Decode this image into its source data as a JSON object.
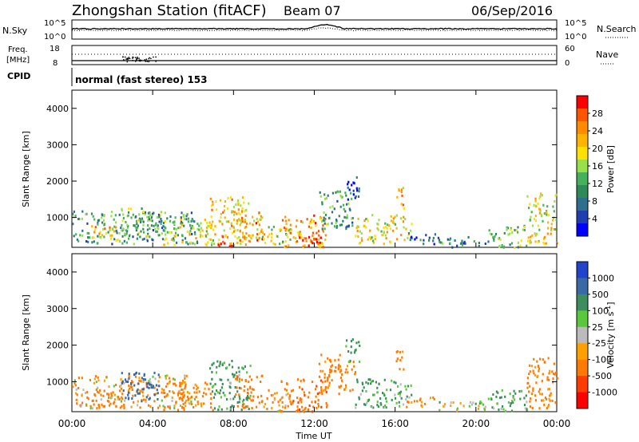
{
  "header": {
    "station": "Zhongshan Station (fitACF)",
    "beam": "Beam 07",
    "date": "06/Sep/2016"
  },
  "strip_noise": {
    "left_label": "N.Sky",
    "right_label": "N.Search",
    "left_ticks": [
      "10^5",
      "10^0"
    ],
    "right_ticks": [
      "10^5",
      "10^0"
    ]
  },
  "strip_freq": {
    "left_label_1": "Freq.",
    "left_label_2": "[MHz]",
    "left_ticks": [
      "18",
      "8"
    ],
    "right_label": "Nave",
    "right_ticks": [
      "60",
      "0"
    ]
  },
  "cpid": {
    "label": "CPID",
    "text": "normal (fast stereo) 153"
  },
  "panels": {
    "ylabel": "Slant Range [km]",
    "xlabel": "Time UT"
  },
  "power_colorbar": {
    "label": "Power [dB]",
    "ticks": [
      "28",
      "24",
      "20",
      "16",
      "12",
      "8",
      "4"
    ],
    "colors": [
      "#ff0000",
      "#ff5500",
      "#ff8c00",
      "#ffb400",
      "#ffe000",
      "#98e04a",
      "#46b05a",
      "#2e8b57",
      "#2e6f8e",
      "#1f3fb0",
      "#0000ff"
    ]
  },
  "velocity_colorbar": {
    "label": "Velocity [m s",
    "label_sup": "-1",
    "label_end": "]",
    "ticks": [
      "1000",
      "500",
      "100",
      "25",
      "-25",
      "-100",
      "-500",
      "-1000"
    ],
    "colors": [
      "#2244cc",
      "#3a6aa6",
      "#3c8f5a",
      "#5ac83a",
      "#bbbbbb",
      "#ffa000",
      "#ff7a00",
      "#ff3c00",
      "#ff0000"
    ]
  },
  "chart_data": {
    "type": "heatmap",
    "x_ticks": [
      "00:00",
      "04:00",
      "08:00",
      "12:00",
      "16:00",
      "20:00",
      "00:00"
    ],
    "y_ticks": [
      "1000",
      "2000",
      "3000",
      "4000"
    ],
    "x_range_hours": [
      0,
      24
    ],
    "y_range_km": [
      180,
      4500
    ],
    "power_scatter": [
      {
        "t0": 0.0,
        "t1": 6.2,
        "r0": 300,
        "r1": 1200,
        "v": 12
      },
      {
        "t0": 0.9,
        "t1": 2.4,
        "r0": 350,
        "r1": 800,
        "v": 20
      },
      {
        "t0": 2.4,
        "t1": 4.4,
        "r0": 500,
        "r1": 1300,
        "v": 14
      },
      {
        "t0": 4.5,
        "t1": 7.0,
        "r0": 250,
        "r1": 1000,
        "v": 18
      },
      {
        "t0": 6.8,
        "t1": 8.8,
        "r0": 250,
        "r1": 1600,
        "v": 20
      },
      {
        "t0": 7.2,
        "t1": 7.9,
        "r0": 200,
        "r1": 600,
        "v": 28
      },
      {
        "t0": 8.0,
        "t1": 9.4,
        "r0": 300,
        "r1": 1200,
        "v": 20
      },
      {
        "t0": 9.0,
        "t1": 9.5,
        "r0": 400,
        "r1": 900,
        "v": 26
      },
      {
        "t0": 9.4,
        "t1": 10.8,
        "r0": 200,
        "r1": 800,
        "v": 16
      },
      {
        "t0": 10.3,
        "t1": 12.6,
        "r0": 200,
        "r1": 1100,
        "v": 22
      },
      {
        "t0": 11.0,
        "t1": 12.3,
        "r0": 200,
        "r1": 500,
        "v": 28
      },
      {
        "t0": 12.2,
        "t1": 14.0,
        "r0": 700,
        "r1": 1800,
        "v": 12
      },
      {
        "t0": 13.5,
        "t1": 14.2,
        "r0": 1500,
        "r1": 2200,
        "v": 6
      },
      {
        "t0": 14.0,
        "t1": 16.8,
        "r0": 300,
        "r1": 1100,
        "v": 18
      },
      {
        "t0": 16.0,
        "t1": 16.4,
        "r0": 1200,
        "r1": 1900,
        "v": 22
      },
      {
        "t0": 16.5,
        "t1": 18.0,
        "r0": 300,
        "r1": 600,
        "v": 8
      },
      {
        "t0": 18.0,
        "t1": 20.5,
        "r0": 200,
        "r1": 500,
        "v": 10
      },
      {
        "t0": 20.5,
        "t1": 22.5,
        "r0": 200,
        "r1": 800,
        "v": 14
      },
      {
        "t0": 22.5,
        "t1": 24.0,
        "r0": 300,
        "r1": 1700,
        "v": 18
      }
    ],
    "velocity_scatter": [
      {
        "t0": 0.0,
        "t1": 6.2,
        "r0": 300,
        "r1": 1200,
        "v": -100
      },
      {
        "t0": 0.9,
        "t1": 2.4,
        "r0": 350,
        "r1": 800,
        "v": -300
      },
      {
        "t0": 2.4,
        "t1": 4.4,
        "r0": 500,
        "r1": 1300,
        "v": 600
      },
      {
        "t0": 4.5,
        "t1": 7.0,
        "r0": 250,
        "r1": 1000,
        "v": -200
      },
      {
        "t0": 6.8,
        "t1": 8.8,
        "r0": 250,
        "r1": 1600,
        "v": 150
      },
      {
        "t0": 8.0,
        "t1": 9.4,
        "r0": 300,
        "r1": 1200,
        "v": -300
      },
      {
        "t0": 9.4,
        "t1": 10.8,
        "r0": 200,
        "r1": 800,
        "v": -100
      },
      {
        "t0": 10.3,
        "t1": 12.6,
        "r0": 200,
        "r1": 1100,
        "v": -400
      },
      {
        "t0": 12.2,
        "t1": 14.0,
        "r0": 700,
        "r1": 1800,
        "v": -200
      },
      {
        "t0": 13.5,
        "t1": 14.2,
        "r0": 1500,
        "r1": 2200,
        "v": 200
      },
      {
        "t0": 14.0,
        "t1": 16.8,
        "r0": 300,
        "r1": 1100,
        "v": 120
      },
      {
        "t0": 16.0,
        "t1": 16.4,
        "r0": 1200,
        "r1": 1900,
        "v": -200
      },
      {
        "t0": 16.5,
        "t1": 18.0,
        "r0": 300,
        "r1": 600,
        "v": -200
      },
      {
        "t0": 18.0,
        "t1": 20.5,
        "r0": 200,
        "r1": 500,
        "v": 20
      },
      {
        "t0": 20.5,
        "t1": 22.5,
        "r0": 200,
        "r1": 800,
        "v": 120
      },
      {
        "t0": 22.5,
        "t1": 24.0,
        "r0": 300,
        "r1": 1700,
        "v": -200
      }
    ]
  }
}
